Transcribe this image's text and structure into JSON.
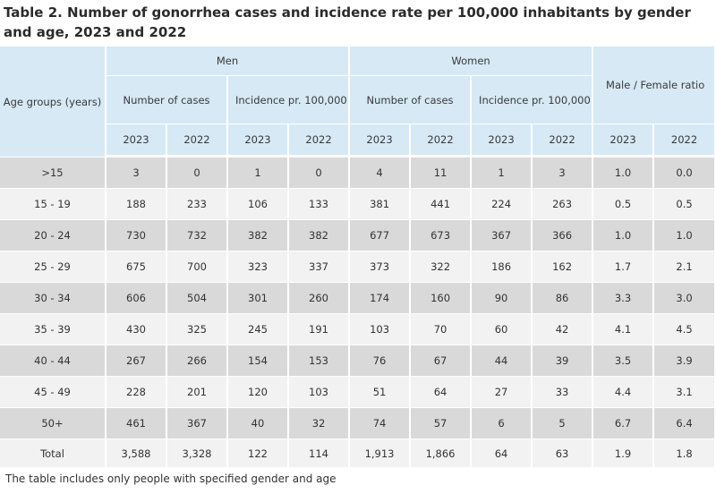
{
  "title": "Table 2. Number of gonorrhea cases and incidence rate per 100,000 inhabitants by gender and age, 2023 and 2022",
  "header": {
    "age_groups": "Age groups (years)",
    "men": "Men",
    "women": "Women",
    "ratio": "Male / Female ratio",
    "cases": "Number of cases",
    "incidence": "Incidence pr. 100,000 residents",
    "years": [
      "2023",
      "2022",
      "2023",
      "2022",
      "2023",
      "2022",
      "2023",
      "2022",
      "2023",
      "2022"
    ]
  },
  "rows": [
    {
      "age": ">15",
      "values": [
        "3",
        "0",
        "1",
        "0",
        "4",
        "11",
        "1",
        "3",
        "1.0",
        "0.0"
      ]
    },
    {
      "age": "15 - 19",
      "values": [
        "188",
        "233",
        "106",
        "133",
        "381",
        "441",
        "224",
        "263",
        "0.5",
        "0.5"
      ]
    },
    {
      "age": "20 - 24",
      "values": [
        "730",
        "732",
        "382",
        "382",
        "677",
        "673",
        "367",
        "366",
        "1.0",
        "1.0"
      ]
    },
    {
      "age": "25 - 29",
      "values": [
        "675",
        "700",
        "323",
        "337",
        "373",
        "322",
        "186",
        "162",
        "1.7",
        "2.1"
      ]
    },
    {
      "age": "30 - 34",
      "values": [
        "606",
        "504",
        "301",
        "260",
        "174",
        "160",
        "90",
        "86",
        "3.3",
        "3.0"
      ]
    },
    {
      "age": "35 - 39",
      "values": [
        "430",
        "325",
        "245",
        "191",
        "103",
        "70",
        "60",
        "42",
        "4.1",
        "4.5"
      ]
    },
    {
      "age": "40 - 44",
      "values": [
        "267",
        "266",
        "154",
        "153",
        "76",
        "67",
        "44",
        "39",
        "3.5",
        "3.9"
      ]
    },
    {
      "age": "45 - 49",
      "values": [
        "228",
        "201",
        "120",
        "103",
        "51",
        "64",
        "27",
        "33",
        "4.4",
        "3.1"
      ]
    },
    {
      "age": "50+",
      "values": [
        "461",
        "367",
        "40",
        "32",
        "74",
        "57",
        "6",
        "5",
        "6.7",
        "6.4"
      ]
    },
    {
      "age": "Total",
      "values": [
        "3,588",
        "3,328",
        "122",
        "114",
        "1,913",
        "1,866",
        "64",
        "63",
        "1.9",
        "1.8"
      ]
    }
  ],
  "footnote": "The table includes only people with specified gender and age",
  "colors": {
    "header_bg": "#d6e9f5",
    "row_dark": "#d9d9d9",
    "row_light": "#f2f2f2"
  }
}
